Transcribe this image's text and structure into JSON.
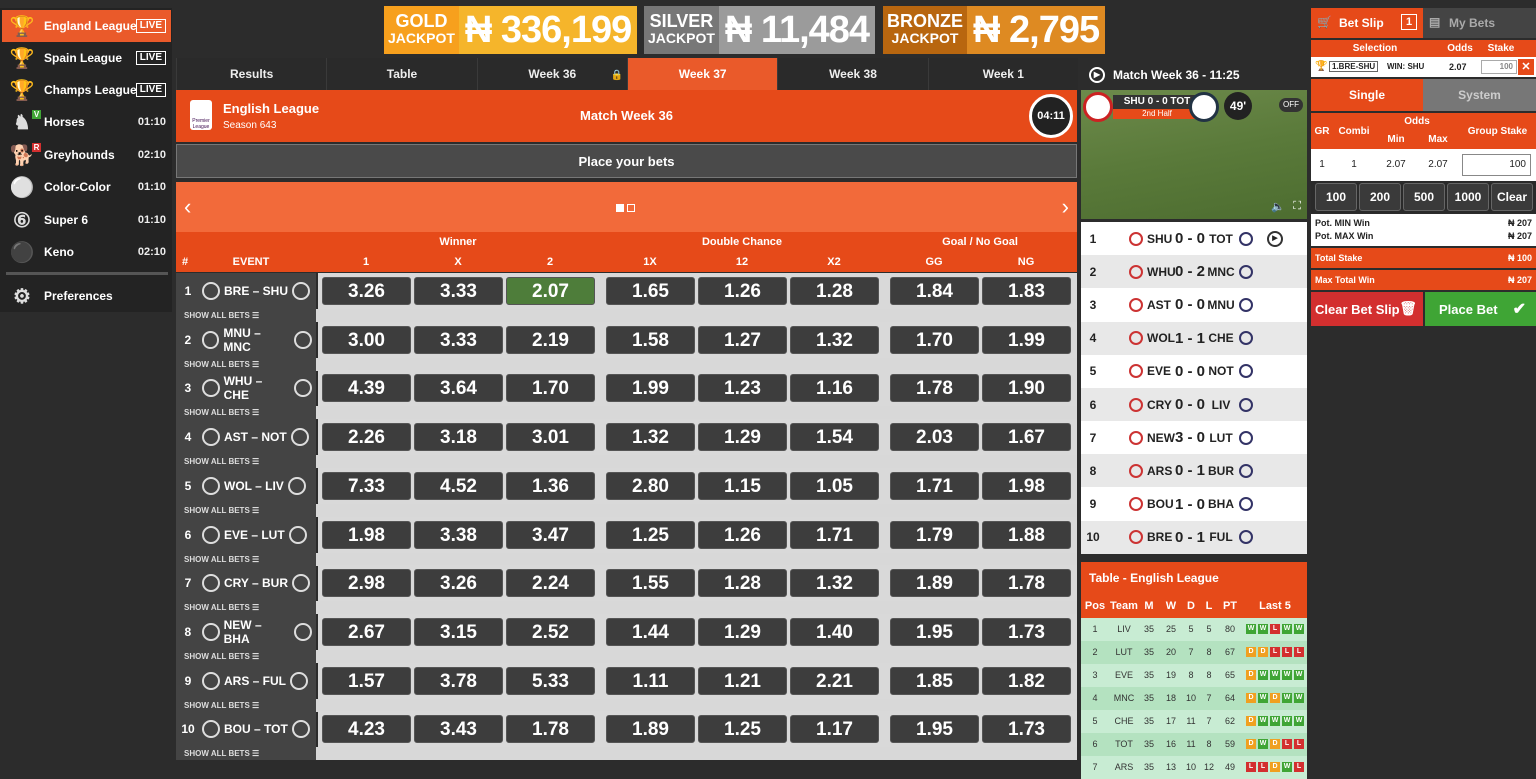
{
  "sidebar": {
    "items": [
      {
        "label": "England League",
        "badge": "LIVE",
        "icon": "trophy-icon"
      },
      {
        "label": "Spain League",
        "badge": "LIVE",
        "icon": "trophy-icon"
      },
      {
        "label": "Champs League",
        "badge": "LIVE",
        "icon": "trophy-icon"
      },
      {
        "label": "Horses",
        "time": "01:10",
        "icon": "horse-icon",
        "tag": "V"
      },
      {
        "label": "Greyhounds",
        "time": "02:10",
        "icon": "dog-icon",
        "tag": "R"
      },
      {
        "label": "Color-Color",
        "time": "01:10",
        "icon": "balls-icon"
      },
      {
        "label": "Super 6",
        "time": "01:10",
        "icon": "super6-icon"
      },
      {
        "label": "Keno",
        "time": "02:10",
        "icon": "keno-icon"
      }
    ],
    "preferences": "Preferences"
  },
  "jackpots": {
    "gold": {
      "label1": "GOLD",
      "label2": "JACKPOT",
      "value": "₦ 336,199"
    },
    "silver": {
      "label1": "SILVER",
      "label2": "JACKPOT",
      "value": "₦ 11,484"
    },
    "bronze": {
      "label1": "BRONZE",
      "label2": "JACKPOT",
      "value": "₦ 2,795"
    }
  },
  "tabs": [
    "Results",
    "Table",
    "Week 36",
    "Week 37",
    "Week 38",
    "Week 1"
  ],
  "league": {
    "name": "English League",
    "season": "Season 643",
    "logo_text": "Premier League",
    "week": "Match Week 36",
    "timer": "04:11"
  },
  "place_bets": "Place your bets",
  "markets": {
    "hash": "#",
    "event": "EVENT",
    "winner": "Winner",
    "double_chance": "Double Chance",
    "goal": "Goal / No Goal",
    "cols": [
      "1",
      "X",
      "2",
      "1X",
      "12",
      "X2",
      "GG",
      "NG"
    ]
  },
  "show_all": "SHOW ALL BETS",
  "events": [
    {
      "n": "1",
      "match": "BRE – SHU",
      "odds": [
        "3.26",
        "3.33",
        "2.07",
        "1.65",
        "1.26",
        "1.28",
        "1.84",
        "1.83"
      ],
      "sel": 2
    },
    {
      "n": "2",
      "match": "MNU – MNC",
      "odds": [
        "3.00",
        "3.33",
        "2.19",
        "1.58",
        "1.27",
        "1.32",
        "1.70",
        "1.99"
      ]
    },
    {
      "n": "3",
      "match": "WHU – CHE",
      "odds": [
        "4.39",
        "3.64",
        "1.70",
        "1.99",
        "1.23",
        "1.16",
        "1.78",
        "1.90"
      ]
    },
    {
      "n": "4",
      "match": "AST – NOT",
      "odds": [
        "2.26",
        "3.18",
        "3.01",
        "1.32",
        "1.29",
        "1.54",
        "2.03",
        "1.67"
      ]
    },
    {
      "n": "5",
      "match": "WOL – LIV",
      "odds": [
        "7.33",
        "4.52",
        "1.36",
        "2.80",
        "1.15",
        "1.05",
        "1.71",
        "1.98"
      ]
    },
    {
      "n": "6",
      "match": "EVE – LUT",
      "odds": [
        "1.98",
        "3.38",
        "3.47",
        "1.25",
        "1.26",
        "1.71",
        "1.79",
        "1.88"
      ]
    },
    {
      "n": "7",
      "match": "CRY – BUR",
      "odds": [
        "2.98",
        "3.26",
        "2.24",
        "1.55",
        "1.28",
        "1.32",
        "1.89",
        "1.78"
      ]
    },
    {
      "n": "8",
      "match": "NEW – BHA",
      "odds": [
        "2.67",
        "3.15",
        "2.52",
        "1.44",
        "1.29",
        "1.40",
        "1.95",
        "1.73"
      ]
    },
    {
      "n": "9",
      "match": "ARS – FUL",
      "odds": [
        "1.57",
        "3.78",
        "5.33",
        "1.11",
        "1.21",
        "2.21",
        "1.85",
        "1.82"
      ]
    },
    {
      "n": "10",
      "match": "BOU – TOT",
      "odds": [
        "4.23",
        "3.43",
        "1.78",
        "1.89",
        "1.25",
        "1.17",
        "1.95",
        "1.73"
      ]
    }
  ],
  "video": {
    "title": "Match Week 36 - 11:25",
    "score": "SHU 0 - 0 TOT",
    "half": "2nd Half",
    "minute": "49'",
    "toggle": "OFF"
  },
  "results": [
    {
      "n": "1",
      "home": "SHU",
      "score": "0 - 0",
      "away": "TOT"
    },
    {
      "n": "2",
      "home": "WHU",
      "score": "0 - 2",
      "away": "MNC"
    },
    {
      "n": "3",
      "home": "AST",
      "score": "0 - 0",
      "away": "MNU"
    },
    {
      "n": "4",
      "home": "WOL",
      "score": "1 - 1",
      "away": "CHE"
    },
    {
      "n": "5",
      "home": "EVE",
      "score": "0 - 0",
      "away": "NOT"
    },
    {
      "n": "6",
      "home": "CRY",
      "score": "0 - 0",
      "away": "LIV"
    },
    {
      "n": "7",
      "home": "NEW",
      "score": "3 - 0",
      "away": "LUT"
    },
    {
      "n": "8",
      "home": "ARS",
      "score": "0 - 1",
      "away": "BUR"
    },
    {
      "n": "9",
      "home": "BOU",
      "score": "1 - 0",
      "away": "BHA"
    },
    {
      "n": "10",
      "home": "BRE",
      "score": "0 - 1",
      "away": "FUL"
    }
  ],
  "table": {
    "title": "Table - English League",
    "cols": [
      "Pos",
      "Team",
      "M",
      "W",
      "D",
      "L",
      "PT",
      "Last 5"
    ],
    "rows": [
      {
        "pos": "1",
        "team": "LIV",
        "m": "35",
        "w": "25",
        "d": "5",
        "l": "5",
        "pt": "80",
        "last5": [
          "W",
          "W",
          "L",
          "W",
          "W"
        ]
      },
      {
        "pos": "2",
        "team": "LUT",
        "m": "35",
        "w": "20",
        "d": "7",
        "l": "8",
        "pt": "67",
        "last5": [
          "D",
          "D",
          "L",
          "L",
          "L"
        ]
      },
      {
        "pos": "3",
        "team": "EVE",
        "m": "35",
        "w": "19",
        "d": "8",
        "l": "8",
        "pt": "65",
        "last5": [
          "D",
          "W",
          "W",
          "W",
          "W"
        ]
      },
      {
        "pos": "4",
        "team": "MNC",
        "m": "35",
        "w": "18",
        "d": "10",
        "l": "7",
        "pt": "64",
        "last5": [
          "D",
          "W",
          "D",
          "W",
          "W"
        ]
      },
      {
        "pos": "5",
        "team": "CHE",
        "m": "35",
        "w": "17",
        "d": "11",
        "l": "7",
        "pt": "62",
        "last5": [
          "D",
          "W",
          "W",
          "W",
          "W"
        ]
      },
      {
        "pos": "6",
        "team": "TOT",
        "m": "35",
        "w": "16",
        "d": "11",
        "l": "8",
        "pt": "59",
        "last5": [
          "D",
          "W",
          "D",
          "L",
          "L"
        ]
      },
      {
        "pos": "7",
        "team": "ARS",
        "m": "35",
        "w": "13",
        "d": "10",
        "l": "12",
        "pt": "49",
        "last5": [
          "L",
          "L",
          "D",
          "W",
          "L"
        ]
      }
    ]
  },
  "slip": {
    "tab_bet": "Bet Slip",
    "count": "1",
    "tab_my": "My Bets",
    "selection": "Selection",
    "odds": "Odds",
    "stake": "Stake",
    "sel_match": "1.BRE-SHU",
    "sel_pick": "WIN: SHU",
    "sel_odds": "2.07",
    "sel_stake": "100",
    "single": "Single",
    "system": "System",
    "gr": "GR",
    "combi": "Combi",
    "odds_h": "Odds",
    "min": "Min",
    "max": "Max",
    "group_stake": "Group Stake",
    "row_gr": "1",
    "row_combi": "1",
    "row_min": "2.07",
    "row_max": "2.07",
    "row_stake": "100",
    "quick": [
      "100",
      "200",
      "500",
      "1000",
      "Clear"
    ],
    "pot_min_label": "Pot. MIN Win",
    "pot_min": "₦ 207",
    "pot_max_label": "Pot. MAX Win",
    "pot_max": "₦ 207",
    "total_label": "Total Stake",
    "total": "₦ 100",
    "max_total_label": "Max Total Win",
    "max_total": "₦ 207",
    "clear": "Clear Bet Slip",
    "place": "Place Bet"
  },
  "colors": {
    "accent": "#e64a19",
    "selected": "#4e7d3a",
    "gold": "#f5a623",
    "silver": "#8a8a8a",
    "bronze": "#d9821a",
    "place": "#3fa535",
    "clear": "#d32f2f"
  }
}
